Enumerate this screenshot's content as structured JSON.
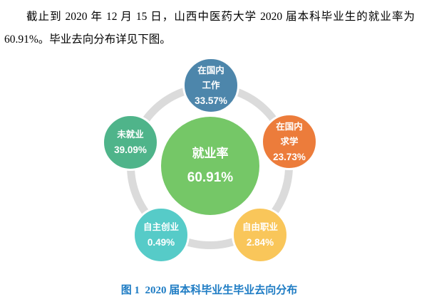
{
  "paragraph": {
    "line1": "截止到 2020 年 12 月 15 日，山西中医药大学 2020 届本科毕业生的就业率为",
    "line2": "60.91%。毕业去向分布详见下图。"
  },
  "chart_data": {
    "type": "bubble",
    "title": "2020届本科毕业生毕业去向分布",
    "ring_color": "#DBDBDB",
    "center": {
      "label": "就业率",
      "value": "60.91%",
      "value_pct": 60.91,
      "color": "#75C767"
    },
    "bubbles": [
      {
        "label": "在国内工作",
        "lines": [
          "在国内",
          "工作"
        ],
        "value": "33.57%",
        "value_pct": 33.57,
        "color": "#4D86AB",
        "position": "top"
      },
      {
        "label": "在国内求学",
        "lines": [
          "在国内",
          "求学"
        ],
        "value": "23.73%",
        "value_pct": 23.73,
        "color": "#EC7C3B",
        "position": "upper-right"
      },
      {
        "label": "自由职业",
        "lines": [
          "自由职业"
        ],
        "value": "2.84%",
        "value_pct": 2.84,
        "color": "#F9C65A",
        "position": "lower-right"
      },
      {
        "label": "自主创业",
        "lines": [
          "自主创业"
        ],
        "value": "0.49%",
        "value_pct": 0.49,
        "color": "#56CBC8",
        "position": "lower-left"
      },
      {
        "label": "未就业",
        "lines": [
          "未就业"
        ],
        "value": "39.09%",
        "value_pct": 39.09,
        "color": "#4FB48A",
        "position": "upper-left"
      }
    ]
  },
  "caption": {
    "text": "图 1  2020 届本科毕业生毕业去向分布",
    "color": "#1E7CC4"
  }
}
